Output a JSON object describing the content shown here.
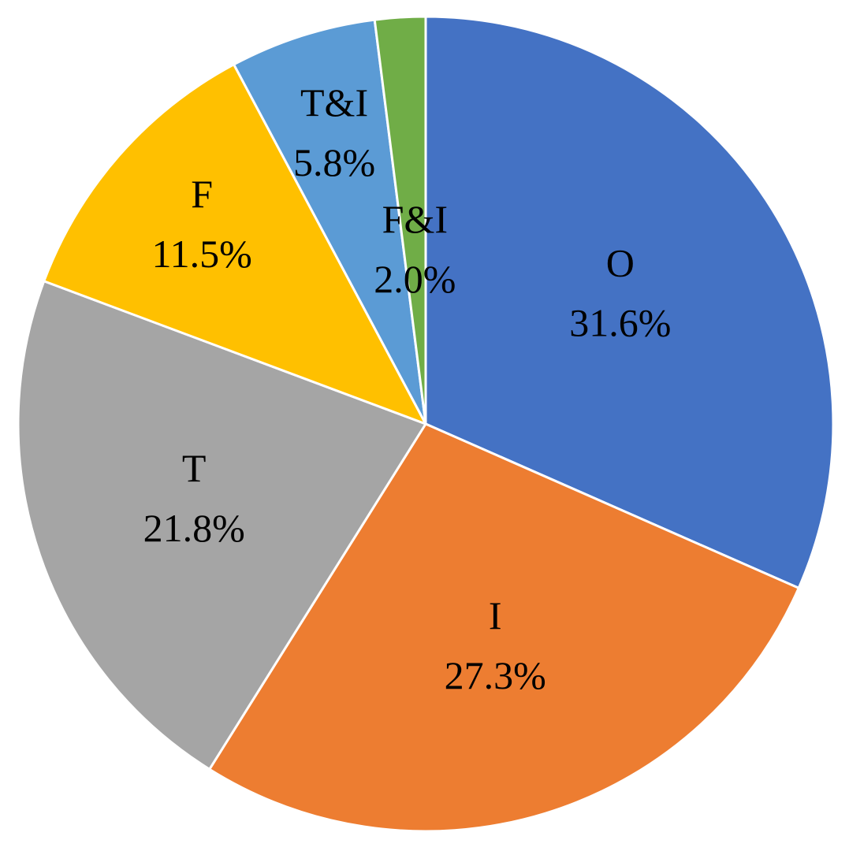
{
  "chart_data": {
    "type": "pie",
    "categories": [
      "O",
      "I",
      "T",
      "F",
      "T&I",
      "F&I"
    ],
    "values": [
      31.6,
      27.3,
      21.8,
      11.5,
      5.8,
      2.0
    ],
    "value_labels": [
      "31.6%",
      "27.3%",
      "21.8%",
      "11.5%",
      "5.8%",
      "2.0%"
    ],
    "colors": [
      "#4472c4",
      "#ed7d31",
      "#a5a5a5",
      "#ffc000",
      "#5b9bd5",
      "#70ad47"
    ]
  }
}
